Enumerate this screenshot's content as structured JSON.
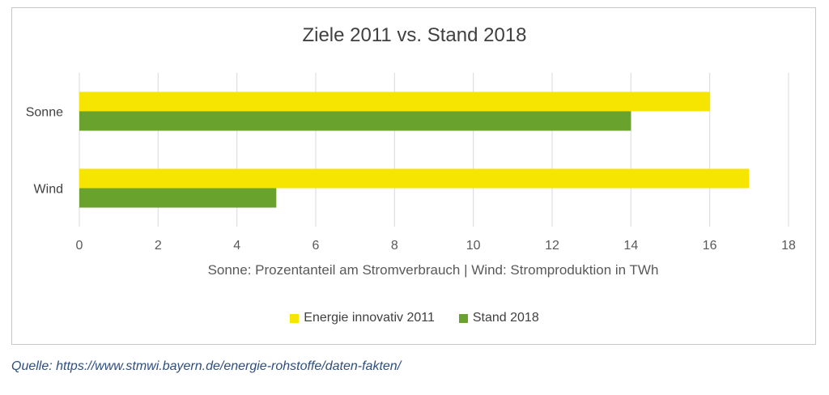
{
  "chart_data": {
    "type": "bar",
    "orientation": "horizontal",
    "title": "Ziele 2011 vs. Stand 2018",
    "xlabel": "Sonne: Prozentanteil am Stromverbrauch | Wind: Stromproduktion in TWh",
    "ylabel": "",
    "categories": [
      "Sonne",
      "Wind"
    ],
    "series": [
      {
        "name": "Energie innovativ 2011",
        "color": "#f5e500",
        "values": [
          16,
          17
        ]
      },
      {
        "name": "Stand 2018",
        "color": "#6aa22e",
        "values": [
          14,
          5
        ]
      }
    ],
    "xlim": [
      0,
      18
    ],
    "xticks": [
      0,
      2,
      4,
      6,
      8,
      10,
      12,
      14,
      16,
      18
    ],
    "grid": "vertical",
    "legend": "bottom"
  },
  "source": "Quelle: https://www.stmwi.bayern.de/energie-rohstoffe/daten-fakten/"
}
